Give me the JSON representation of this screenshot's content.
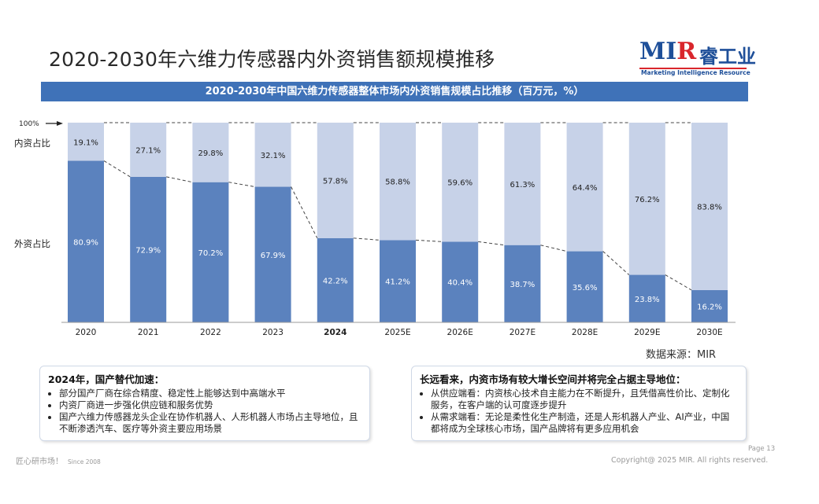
{
  "header": {
    "title": "2020-2030年六维力传感器内外资销售额规模推移",
    "logo": {
      "main_left": "MI",
      "main_r": "R",
      "main_cn": "睿工业",
      "subtitle": "Marketing Intelligence Resource"
    }
  },
  "banner": {
    "text": "2020-2030年中国六维力传感器整体市场内外资销售规模占比推移（百万元，%）"
  },
  "chart_data": {
    "type": "bar",
    "stacked": true,
    "title": "2020-2030年中国六维力传感器整体市场内外资销售规模占比推移（百万元，%）",
    "categories": [
      "2020",
      "2021",
      "2022",
      "2023",
      "2024",
      "2025E",
      "2026E",
      "2027E",
      "2028E",
      "2029E",
      "2030E"
    ],
    "highlight_category": "2024",
    "series": [
      {
        "name": "外资占比",
        "values": [
          80.9,
          72.9,
          70.2,
          67.9,
          42.2,
          41.2,
          40.4,
          38.7,
          35.6,
          23.8,
          16.2
        ],
        "labels": [
          "80.9%",
          "72.9%",
          "70.2%",
          "67.9%",
          "42.2%",
          "41.2%",
          "40.4%",
          "38.7%",
          "35.6%",
          "23.8%",
          "16.2%"
        ],
        "color": "#5b82be"
      },
      {
        "name": "内资占比",
        "values": [
          19.1,
          27.1,
          29.8,
          32.1,
          57.8,
          58.8,
          59.6,
          61.3,
          64.4,
          76.2,
          83.8
        ],
        "labels": [
          "19.1%",
          "27.1%",
          "29.8%",
          "32.1%",
          "57.8%",
          "58.8%",
          "59.6%",
          "61.3%",
          "64.4%",
          "76.2%",
          "83.8%"
        ],
        "color": "#c7d2e8"
      }
    ],
    "ylim": [
      0,
      100
    ],
    "y_marker_label": "100%",
    "xlabel": "",
    "ylabel": "",
    "legend": "left",
    "grid": false
  },
  "source": "数据来源：MIR",
  "notes": {
    "left": {
      "heading": "2024年，国产替代加速：",
      "items": [
        "部分国产厂商在综合精度、稳定性上能够达到中高端水平",
        "内资厂商进一步强化供应链和服务优势",
        "国产六维力传感器龙头企业在协作机器人、人形机器人市场占主导地位，且不断渗透汽车、医疗等外资主要应用场景"
      ]
    },
    "right": {
      "heading": "长远看来，内资市场有较大增长空间并将完全占据主导地位：",
      "items": [
        "从供应端看：内资核心技术自主能力在不断提升，且凭借高性价比、定制化服务，在客户端的认可度逐步提升",
        "从需求端看：无论是柔性化生产制造，还是人形机器人产业、AI产业，中国都将成为全球核心市场，国产品牌将有更多应用机会"
      ]
    }
  },
  "footer": {
    "left": "匠心研市场！",
    "since": "Since 2008",
    "page": "Page 13",
    "copyright": "Copyright@ 2025 MIR. All rights reserved."
  }
}
